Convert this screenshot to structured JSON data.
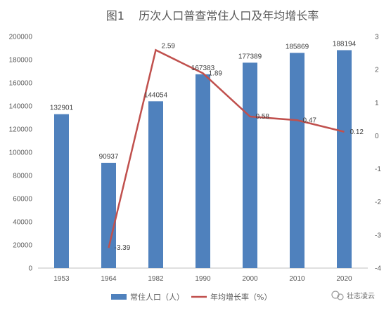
{
  "watermark": "壮志凌云",
  "colors": {
    "bar": "#4f81bd",
    "line": "#c0504d",
    "text": "#595959",
    "axis": "#bfbfbf"
  },
  "chart_data": {
    "type": "bar",
    "title": "图1    历次人口普查常住人口及年均增长率",
    "categories": [
      "1953",
      "1964",
      "1982",
      "1990",
      "2000",
      "2010",
      "2020"
    ],
    "series": [
      {
        "name": "常住人口（人）",
        "type": "bar",
        "axis": "left",
        "values": [
          132901,
          90937,
          144054,
          167383,
          177389,
          185869,
          188194
        ]
      },
      {
        "name": "年均增长率（%）",
        "type": "line",
        "axis": "right",
        "values": [
          null,
          -3.39,
          2.59,
          1.89,
          0.58,
          0.47,
          0.12
        ]
      }
    ],
    "y_left": {
      "min": 0,
      "max": 200000,
      "ticks": [
        0,
        20000,
        40000,
        60000,
        80000,
        100000,
        120000,
        140000,
        160000,
        180000,
        200000
      ]
    },
    "y_right": {
      "min": -4,
      "max": 3,
      "ticks": [
        -4,
        -3,
        -2,
        -1,
        0,
        1,
        2,
        3
      ]
    },
    "bar_labels": [
      "132901",
      "90937",
      "144054",
      "167383",
      "177389",
      "185869",
      "188194"
    ],
    "line_labels": [
      "",
      "-3.39",
      "2.59",
      "1.89",
      "0.58",
      "0.47",
      "0.12"
    ],
    "grid": false,
    "legend": "bottom"
  }
}
